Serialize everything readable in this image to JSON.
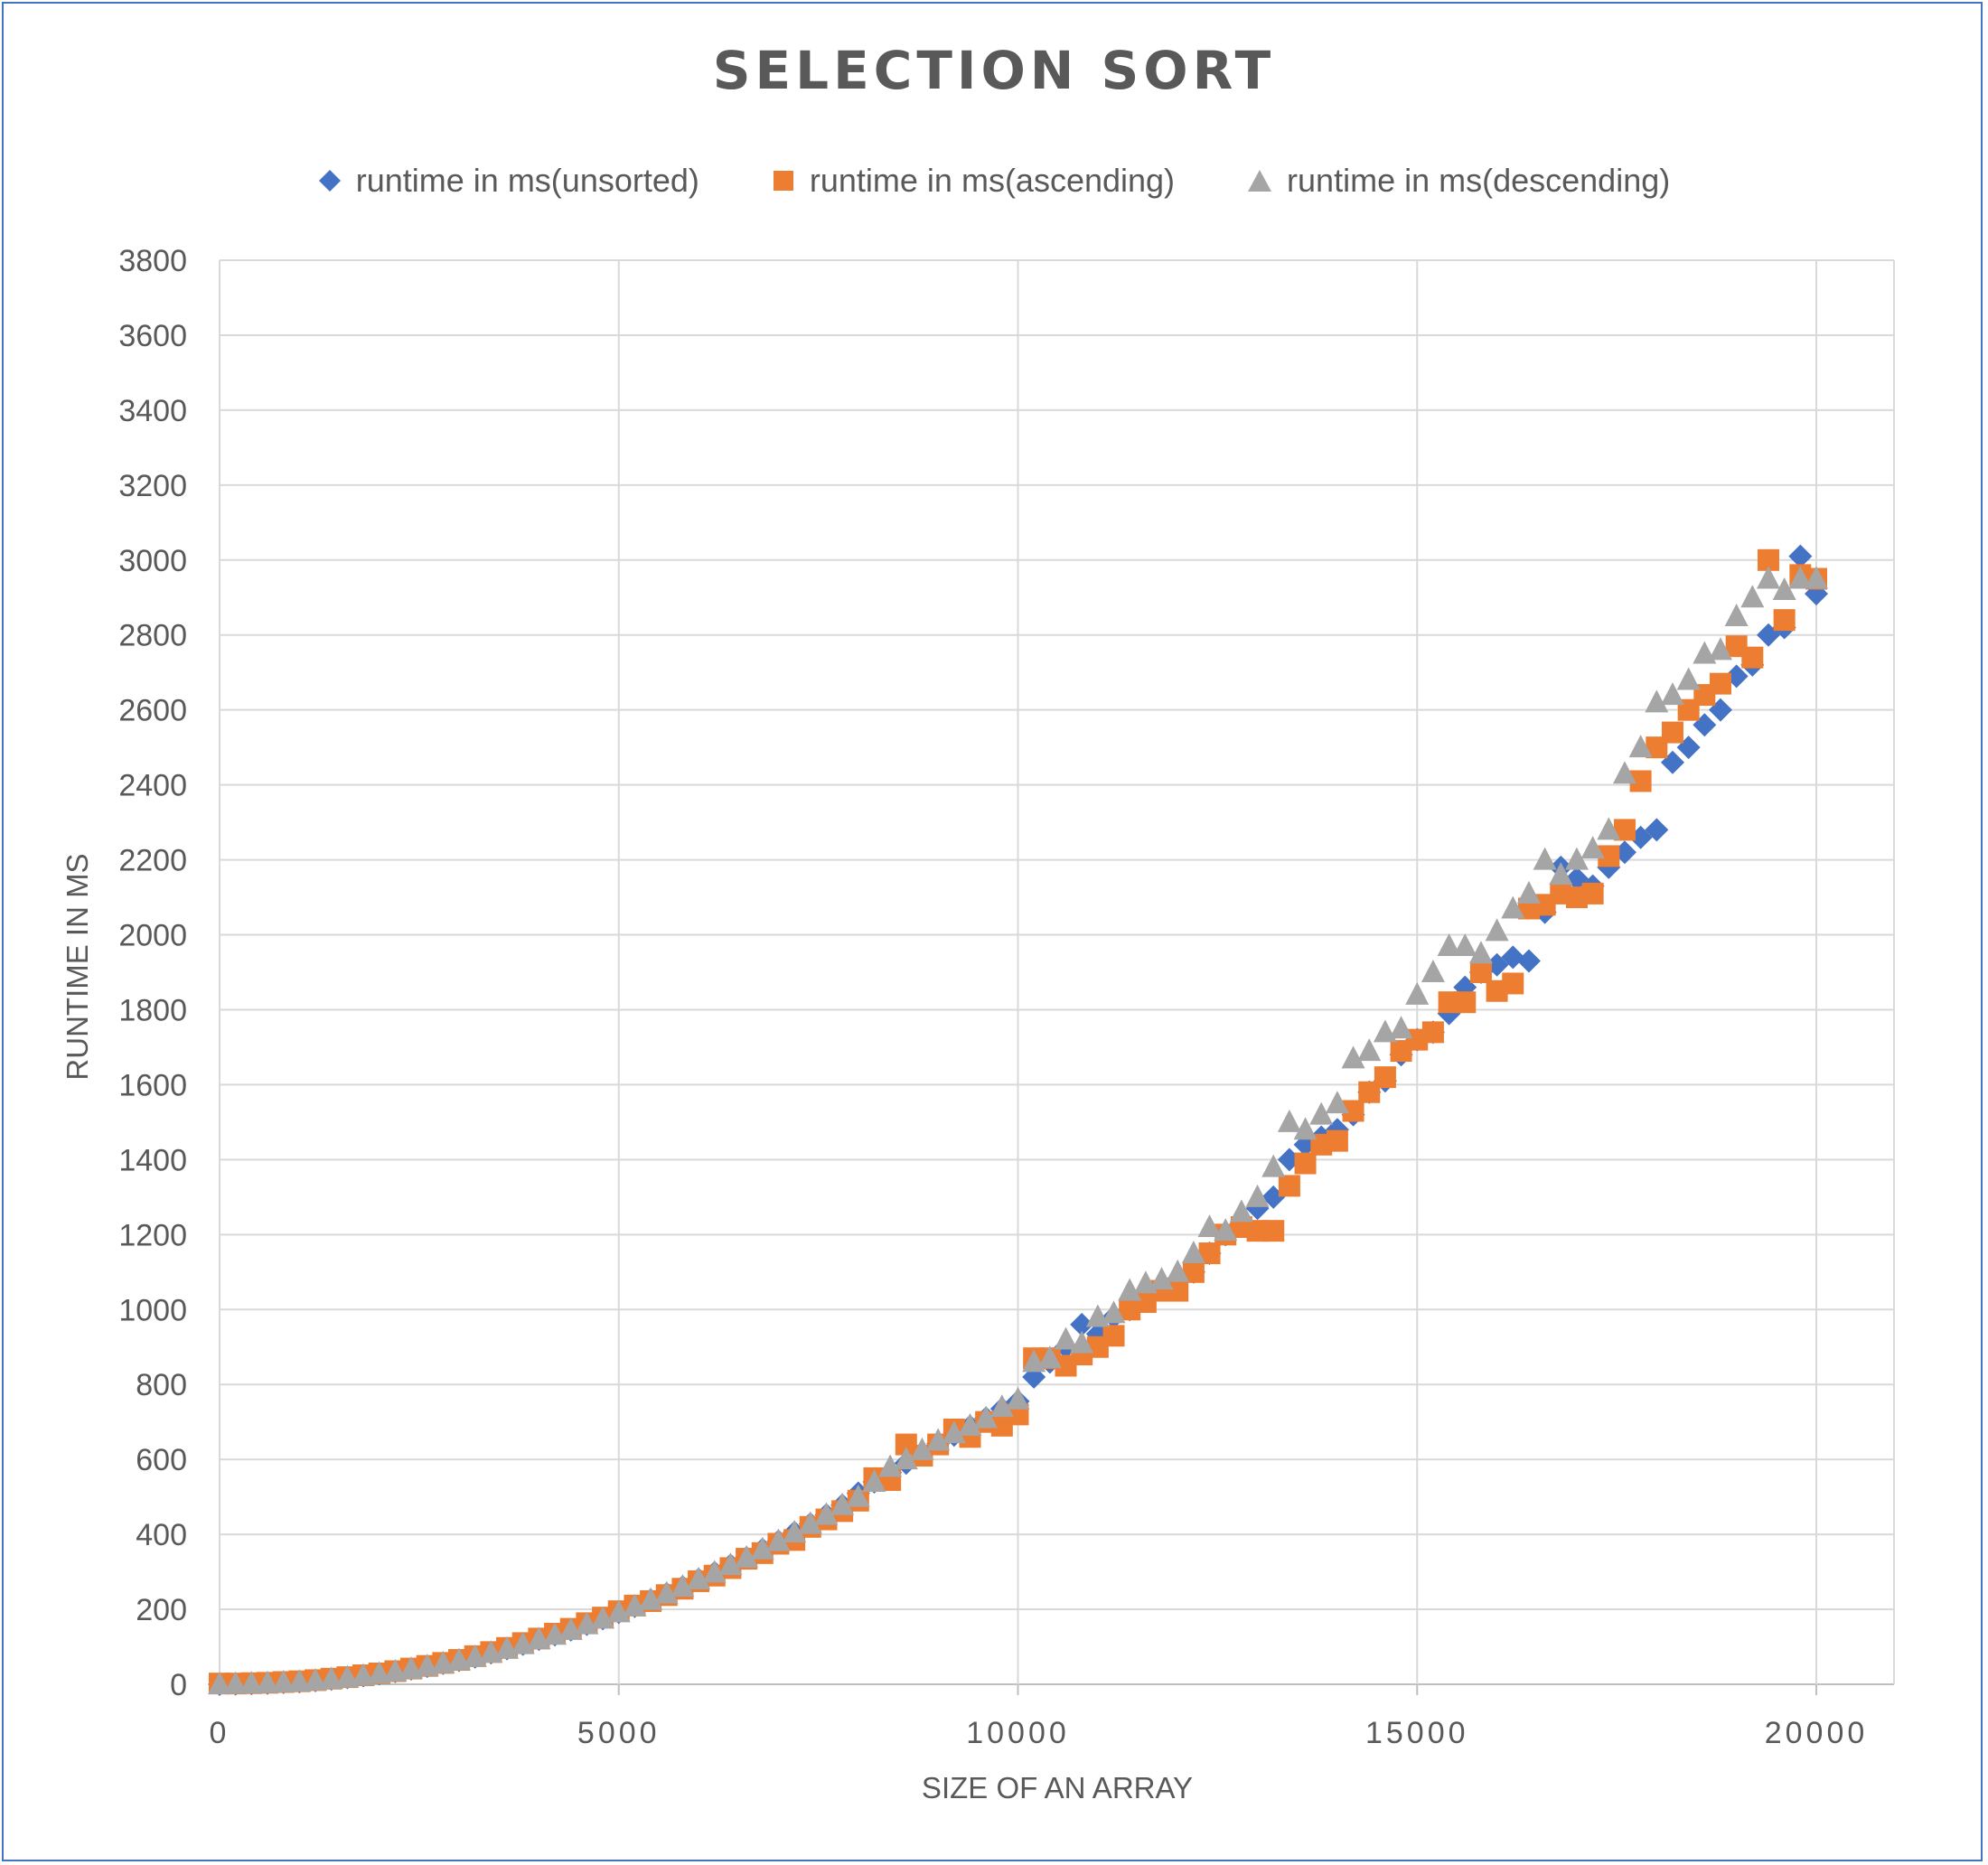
{
  "chart_data": {
    "type": "scatter",
    "title": "SELECTION SORT",
    "xlabel": "SIZE OF AN ARRAY",
    "ylabel": "RUNTIME IN MS",
    "xlim": [
      0,
      21000
    ],
    "ylim": [
      0,
      3800
    ],
    "xticks": [
      0,
      5000,
      10000,
      15000,
      20000
    ],
    "yticks": [
      0,
      200,
      400,
      600,
      800,
      1000,
      1200,
      1400,
      1600,
      1800,
      2000,
      2200,
      2400,
      2600,
      2800,
      3000,
      3200,
      3400,
      3600,
      3800
    ],
    "grid": true,
    "legend_position": "top",
    "x": [
      0,
      200,
      400,
      600,
      800,
      1000,
      1200,
      1400,
      1600,
      1800,
      2000,
      2200,
      2400,
      2600,
      2800,
      3000,
      3200,
      3400,
      3600,
      3800,
      4000,
      4200,
      4400,
      4600,
      4800,
      5000,
      5200,
      5400,
      5600,
      5800,
      6000,
      6200,
      6400,
      6600,
      6800,
      7000,
      7200,
      7400,
      7600,
      7800,
      8000,
      8200,
      8400,
      8600,
      8800,
      9000,
      9200,
      9400,
      9600,
      9800,
      10000,
      10200,
      10400,
      10600,
      10800,
      11000,
      11200,
      11400,
      11600,
      11800,
      12000,
      12200,
      12400,
      12600,
      12800,
      13000,
      13200,
      13400,
      13600,
      13800,
      14000,
      14200,
      14400,
      14600,
      14800,
      15000,
      15200,
      15400,
      15600,
      15800,
      16000,
      16200,
      16400,
      16600,
      16800,
      17000,
      17200,
      17400,
      17600,
      17800,
      18000,
      18200,
      18400,
      18600,
      18800,
      19000,
      19200,
      19400,
      19600,
      19800,
      20000
    ],
    "series": [
      {
        "name": "runtime in ms(unsorted)",
        "color": "#4472c4",
        "marker": "diamond",
        "values": [
          0,
          1,
          2,
          3,
          5,
          7,
          10,
          14,
          18,
          23,
          28,
          34,
          41,
          48,
          56,
          64,
          73,
          84,
          95,
          107,
          120,
          132,
          145,
          160,
          175,
          192,
          208,
          225,
          242,
          260,
          280,
          298,
          318,
          338,
          360,
          382,
          405,
          428,
          452,
          478,
          510,
          540,
          565,
          590,
          618,
          642,
          665,
          688,
          710,
          735,
          755,
          820,
          860,
          900,
          960,
          935,
          980,
          1000,
          1030,
          1055,
          1080,
          1100,
          1150,
          1200,
          1230,
          1270,
          1300,
          1400,
          1440,
          1460,
          1480,
          1520,
          1580,
          1610,
          1680,
          1720,
          1740,
          1790,
          1860,
          1900,
          1920,
          1940,
          1930,
          2060,
          2180,
          2150,
          2130,
          2180,
          2220,
          2260,
          2280,
          2460,
          2500,
          2560,
          2600,
          2690,
          2720,
          2800,
          2820,
          3010,
          2910
        ]
      },
      {
        "name": "runtime in ms(ascending)",
        "color": "#ed7d31",
        "marker": "square",
        "values": [
          2,
          2,
          3,
          4,
          6,
          8,
          11,
          15,
          19,
          24,
          29,
          35,
          42,
          49,
          57,
          65,
          75,
          86,
          97,
          110,
          122,
          135,
          148,
          163,
          178,
          195,
          210,
          222,
          238,
          255,
          275,
          290,
          310,
          335,
          350,
          375,
          385,
          420,
          440,
          462,
          490,
          550,
          545,
          640,
          610,
          640,
          680,
          660,
          700,
          690,
          720,
          870,
          870,
          850,
          880,
          900,
          930,
          1000,
          1020,
          1050,
          1050,
          1100,
          1150,
          1200,
          1220,
          1210,
          1210,
          1330,
          1390,
          1440,
          1450,
          1530,
          1580,
          1620,
          1690,
          1720,
          1740,
          1820,
          1820,
          1900,
          1850,
          1870,
          2070,
          2080,
          2110,
          2100,
          2110,
          2210,
          2280,
          2410,
          2500,
          2540,
          2600,
          2640,
          2670,
          2770,
          2740,
          3000,
          2840,
          2960,
          2950
        ]
      },
      {
        "name": "runtime in ms(descending)",
        "color": "#a5a5a5",
        "marker": "triangle",
        "values": [
          0,
          1,
          2,
          3,
          5,
          7,
          10,
          14,
          18,
          23,
          28,
          34,
          41,
          48,
          56,
          64,
          73,
          84,
          95,
          107,
          120,
          132,
          145,
          160,
          175,
          192,
          208,
          225,
          242,
          260,
          280,
          298,
          318,
          338,
          360,
          382,
          405,
          428,
          452,
          478,
          500,
          540,
          580,
          600,
          625,
          650,
          670,
          690,
          710,
          740,
          760,
          860,
          870,
          920,
          910,
          980,
          990,
          1050,
          1070,
          1080,
          1100,
          1150,
          1220,
          1210,
          1260,
          1300,
          1380,
          1500,
          1480,
          1520,
          1550,
          1670,
          1690,
          1740,
          1750,
          1840,
          1900,
          1970,
          1970,
          1950,
          2010,
          2070,
          2110,
          2200,
          2160,
          2200,
          2230,
          2280,
          2430,
          2500,
          2620,
          2640,
          2680,
          2750,
          2760,
          2850,
          2900,
          2950,
          2920,
          2950,
          2950
        ]
      }
    ]
  }
}
